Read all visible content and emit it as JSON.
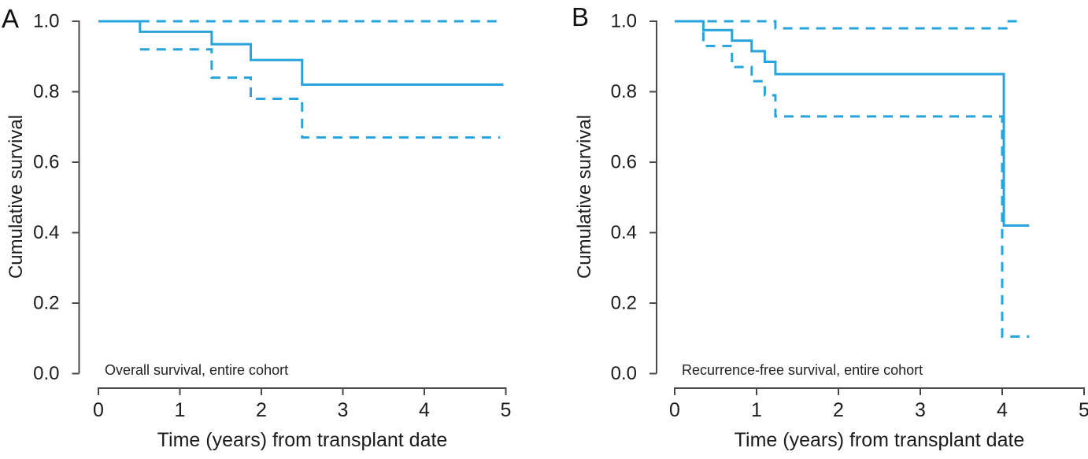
{
  "figure": {
    "background": "#ffffff",
    "curve_color": "#27a4de",
    "axis_color": "#4a4a4a",
    "text_color": "#1c1c1c"
  },
  "chart_data": [
    {
      "panel": "A",
      "label": "A",
      "type": "line",
      "subtype": "kaplan-meier-step",
      "title": "Overall survival, entire cohort",
      "y_axis_label": "Cumulative survival",
      "x_axis_label": "Time (years) from transplant date",
      "x_ticks": [
        0,
        1,
        2,
        3,
        4,
        5
      ],
      "y_ticks": [
        {
          "v": 1.0,
          "label": "1.0"
        },
        {
          "v": 0.8,
          "label": "0.8"
        },
        {
          "v": 0.6,
          "label": "0.6"
        },
        {
          "v": 0.4,
          "label": "0.4"
        },
        {
          "v": 0.2,
          "label": "0.2"
        },
        {
          "v": 0.0,
          "label": "0.0"
        }
      ],
      "xlim": [
        0,
        5
      ],
      "ylim": [
        0.0,
        1.0
      ],
      "legend": "none",
      "grid": false,
      "series": [
        {
          "name": "survival-estimate",
          "style": "solid",
          "points": [
            [
              0,
              1.0
            ],
            [
              0.51,
              0.97
            ],
            [
              1.39,
              0.935
            ],
            [
              1.87,
              0.89
            ],
            [
              2.5,
              0.82
            ]
          ],
          "end_t": 4.97
        },
        {
          "name": "ci-upper",
          "style": "dashed",
          "points": [
            [
              0.51,
              1.0
            ]
          ],
          "end_t": 4.95
        },
        {
          "name": "ci-lower",
          "style": "dashed",
          "points": [
            [
              0.51,
              0.92
            ],
            [
              1.39,
              0.84
            ],
            [
              1.87,
              0.78
            ],
            [
              2.5,
              0.67
            ]
          ],
          "end_t": 4.93
        }
      ]
    },
    {
      "panel": "B",
      "label": "B",
      "type": "line",
      "subtype": "kaplan-meier-step",
      "title": "Recurrence-free survival, entire cohort",
      "y_axis_label": "Cumulative survival",
      "x_axis_label": "Time (years) from transplant date",
      "x_ticks": [
        0,
        1,
        2,
        3,
        4,
        5
      ],
      "y_ticks": [
        {
          "v": 1.0,
          "label": "1.0"
        },
        {
          "v": 0.8,
          "label": "0.8"
        },
        {
          "v": 0.6,
          "label": "0.6"
        },
        {
          "v": 0.4,
          "label": "0.4"
        },
        {
          "v": 0.2,
          "label": "0.2"
        },
        {
          "v": 0.0,
          "label": "0.0"
        }
      ],
      "xlim": [
        0,
        5
      ],
      "ylim": [
        0.0,
        1.0
      ],
      "legend": "none",
      "grid": false,
      "series": [
        {
          "name": "survival-estimate",
          "style": "solid",
          "points": [
            [
              0,
              1.0
            ],
            [
              0.35,
              0.975
            ],
            [
              0.7,
              0.945
            ],
            [
              0.94,
              0.915
            ],
            [
              1.1,
              0.885
            ],
            [
              1.23,
              0.85
            ],
            [
              4.02,
              0.42
            ]
          ],
          "end_t": 4.33
        },
        {
          "name": "ci-upper",
          "style": "dashed",
          "points": [
            [
              0.4,
              1.0
            ],
            [
              1.23,
              0.98
            ],
            [
              4.05,
              1.0
            ]
          ],
          "end_t": 4.2
        },
        {
          "name": "ci-lower",
          "style": "dashed",
          "points": [
            [
              0.35,
              0.97
            ],
            [
              0.35,
              0.93
            ],
            [
              0.7,
              0.87
            ],
            [
              0.94,
              0.83
            ],
            [
              1.1,
              0.79
            ],
            [
              1.23,
              0.73
            ],
            [
              4.0,
              0.105
            ]
          ],
          "end_t": 4.33
        }
      ]
    }
  ]
}
